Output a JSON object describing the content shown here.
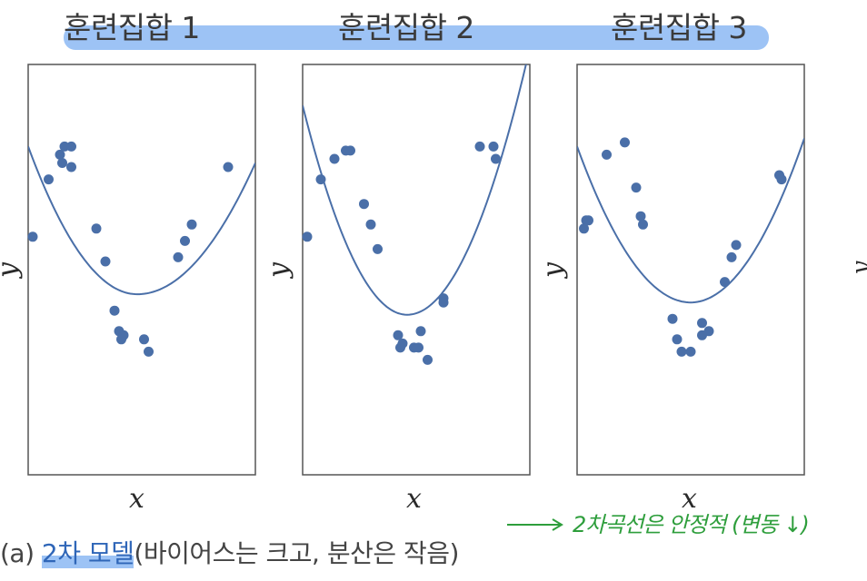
{
  "titles": [
    "훈련집합 1",
    "훈련집합 2",
    "훈련집합 3"
  ],
  "axis": {
    "xlabel": "x",
    "ylabel": "y"
  },
  "caption": {
    "prefix": "(a) ",
    "highlight": "2차 모델",
    "suffix": "(바이어스는 크고, 분산은 작음)"
  },
  "handwritten_note": "2차곡선은 안정적 (변동 ↓)",
  "colors": {
    "points": "#4a6fa8",
    "curve": "#4a6fa8",
    "highlight": "#9dc3f5",
    "note": "#2e9e3c"
  },
  "chart_data": [
    {
      "type": "scatter",
      "title": "훈련집합 1",
      "xlabel": "x",
      "ylabel": "y",
      "xlim": [
        0,
        1
      ],
      "ylim": [
        0,
        1
      ],
      "points": [
        [
          0.02,
          0.58
        ],
        [
          0.09,
          0.72
        ],
        [
          0.14,
          0.78
        ],
        [
          0.16,
          0.8
        ],
        [
          0.19,
          0.8
        ],
        [
          0.15,
          0.76
        ],
        [
          0.19,
          0.75
        ],
        [
          0.3,
          0.6
        ],
        [
          0.34,
          0.52
        ],
        [
          0.38,
          0.4
        ],
        [
          0.4,
          0.35
        ],
        [
          0.42,
          0.34
        ],
        [
          0.41,
          0.33
        ],
        [
          0.51,
          0.33
        ],
        [
          0.53,
          0.3
        ],
        [
          0.66,
          0.53
        ],
        [
          0.69,
          0.57
        ],
        [
          0.72,
          0.61
        ],
        [
          0.88,
          0.75
        ]
      ],
      "fit": {
        "kind": "quadratic",
        "vertex": [
          0.48,
          0.44
        ],
        "y_at_0": 0.8,
        "y_at_1": 0.76
      }
    },
    {
      "type": "scatter",
      "title": "훈련집합 2",
      "xlabel": "x",
      "ylabel": "y",
      "xlim": [
        0,
        1
      ],
      "ylim": [
        0,
        1
      ],
      "points": [
        [
          0.02,
          0.58
        ],
        [
          0.08,
          0.72
        ],
        [
          0.14,
          0.77
        ],
        [
          0.19,
          0.79
        ],
        [
          0.21,
          0.79
        ],
        [
          0.27,
          0.66
        ],
        [
          0.3,
          0.61
        ],
        [
          0.33,
          0.55
        ],
        [
          0.42,
          0.34
        ],
        [
          0.43,
          0.31
        ],
        [
          0.44,
          0.32
        ],
        [
          0.49,
          0.31
        ],
        [
          0.51,
          0.31
        ],
        [
          0.52,
          0.35
        ],
        [
          0.55,
          0.28
        ],
        [
          0.62,
          0.43
        ],
        [
          0.62,
          0.42
        ],
        [
          0.78,
          0.8
        ],
        [
          0.84,
          0.8
        ],
        [
          0.85,
          0.77
        ]
      ],
      "fit": {
        "kind": "quadratic",
        "vertex": [
          0.46,
          0.39
        ],
        "y_at_0": 0.9,
        "y_at_1": 1.04
      }
    },
    {
      "type": "scatter",
      "title": "훈련집합 3",
      "xlabel": "x",
      "ylabel": "y",
      "xlim": [
        0,
        1
      ],
      "ylim": [
        0,
        1
      ],
      "points": [
        [
          0.03,
          0.6
        ],
        [
          0.04,
          0.62
        ],
        [
          0.05,
          0.62
        ],
        [
          0.13,
          0.78
        ],
        [
          0.21,
          0.81
        ],
        [
          0.26,
          0.7
        ],
        [
          0.28,
          0.63
        ],
        [
          0.29,
          0.61
        ],
        [
          0.42,
          0.38
        ],
        [
          0.44,
          0.33
        ],
        [
          0.46,
          0.3
        ],
        [
          0.5,
          0.3
        ],
        [
          0.55,
          0.34
        ],
        [
          0.55,
          0.37
        ],
        [
          0.58,
          0.35
        ],
        [
          0.65,
          0.47
        ],
        [
          0.68,
          0.53
        ],
        [
          0.7,
          0.56
        ],
        [
          0.89,
          0.73
        ],
        [
          0.9,
          0.72
        ]
      ],
      "fit": {
        "kind": "quadratic",
        "vertex": [
          0.5,
          0.42
        ],
        "y_at_0": 0.8,
        "y_at_1": 0.82
      }
    }
  ]
}
